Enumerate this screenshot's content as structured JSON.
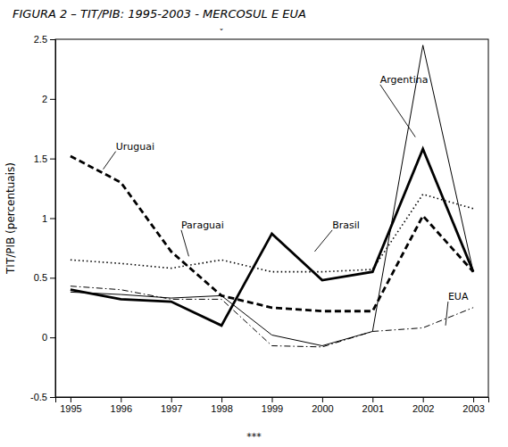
{
  "chart_data": {
    "type": "line",
    "title": "FIGURA 2 – TIT/PIB: 1995-2003 - MERCOSUL E EUA",
    "y_label": "TIT/PIB (percentuais)",
    "footnote": "***",
    "x": [
      1995,
      1996,
      1997,
      1998,
      1999,
      2000,
      2001,
      2002,
      2003
    ],
    "xlim": [
      1994.7,
      2003.3
    ],
    "xticks": [
      1995,
      1996,
      1997,
      1998,
      1999,
      2000,
      2001,
      2002,
      2003
    ],
    "ylim": [
      -0.5,
      2.5
    ],
    "yticks": [
      -0.5,
      0,
      0.5,
      1,
      1.5,
      2,
      2.5
    ],
    "grid": false,
    "series": [
      {
        "name": "Argentina",
        "color": "#000000",
        "line_style": "solid",
        "values": [
          0.38,
          0.36,
          0.33,
          0.35,
          0.02,
          -0.07,
          0.05,
          2.45,
          0.55
        ]
      },
      {
        "name": "Brasil",
        "color": "#000000",
        "line_style": "solid",
        "values": [
          0.4,
          0.32,
          0.3,
          0.1,
          0.87,
          0.48,
          0.55,
          1.58,
          0.55
        ]
      },
      {
        "name": "Uruguai",
        "color": "#000000",
        "line_style": "dashed",
        "values": [
          1.52,
          1.3,
          0.72,
          0.35,
          0.25,
          0.22,
          0.22,
          1.02,
          0.55
        ]
      },
      {
        "name": "Paraguai",
        "color": "#000000",
        "line_style": "dotted",
        "values": [
          0.65,
          0.62,
          0.58,
          0.65,
          0.55,
          0.55,
          0.57,
          1.2,
          1.08
        ]
      },
      {
        "name": "EUA",
        "color": "#000000",
        "line_style": "dashdot",
        "values": [
          0.43,
          0.4,
          0.32,
          0.32,
          -0.07,
          -0.08,
          0.05,
          0.08,
          0.25
        ]
      }
    ],
    "annotations": [
      {
        "text": "Argentina",
        "xy": [
          2001.85,
          1.68
        ],
        "xytext": [
          2001.15,
          2.12
        ]
      },
      {
        "text": "Brasil",
        "xy": [
          1999.85,
          0.72
        ],
        "xytext": [
          2000.2,
          0.9
        ]
      },
      {
        "text": "Uruguai",
        "xy": [
          1995.65,
          1.41
        ],
        "xytext": [
          1995.9,
          1.56
        ]
      },
      {
        "text": "Paraguai",
        "xy": [
          1997.35,
          0.68
        ],
        "xytext": [
          1997.2,
          0.9
        ]
      },
      {
        "text": "EUA",
        "xy": [
          2002.45,
          0.1
        ],
        "xytext": [
          2002.5,
          0.3
        ]
      },
      {
        "text": "ˇ",
        "xy": [
          1998.0,
          2.5
        ]
      }
    ]
  }
}
